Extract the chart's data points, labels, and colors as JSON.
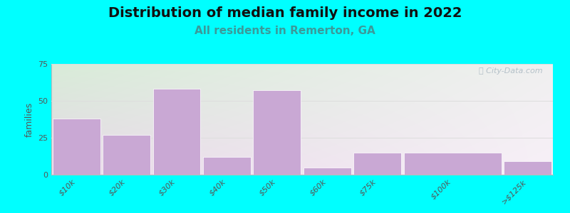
{
  "title": "Distribution of median family income in 2022",
  "subtitle": "All residents in Remerton, GA",
  "ylabel": "families",
  "categories": [
    "$10k",
    "$20k",
    "$30k",
    "$40k",
    "$50k",
    "$60k",
    "$75k",
    "$100k",
    ">$125k"
  ],
  "values": [
    38,
    27,
    58,
    12,
    57,
    5,
    15,
    15,
    9
  ],
  "bar_widths": [
    1,
    1,
    1,
    1,
    1,
    1,
    1,
    2,
    1
  ],
  "ylim": [
    0,
    75
  ],
  "yticks": [
    0,
    25,
    50,
    75
  ],
  "bar_color": "#c9a8d4",
  "bar_edge_color": "#ffffff",
  "background_color": "#00ffff",
  "plot_bg_color_topleft": "#d8ecd8",
  "plot_bg_color_bottomright": "#e8d8e8",
  "title_fontsize": 14,
  "subtitle_fontsize": 11,
  "subtitle_color": "#3a9a9a",
  "watermark_text": "ⓘ City-Data.com",
  "watermark_color": "#aab8c2",
  "tick_label_color": "#555555",
  "tick_label_fontsize": 8,
  "ylabel_fontsize": 9,
  "grid_color": "#dddddd"
}
